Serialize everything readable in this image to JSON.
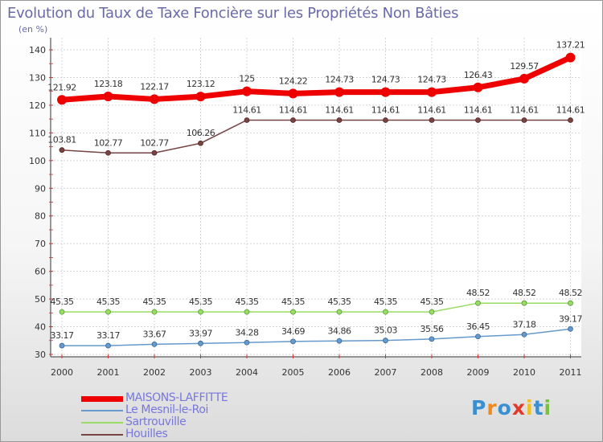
{
  "title": "Evolution du Taux de Taxe Foncière sur les Propriétés Non Bâties",
  "unit": "(en %)",
  "logo": {
    "text": "Proxiti",
    "letters": [
      {
        "ch": "P",
        "color": "#3a8fd0"
      },
      {
        "ch": "r",
        "color": "#f08a1c"
      },
      {
        "ch": "o",
        "color": "#3a8fd0"
      },
      {
        "ch": "x",
        "color": "#e23a2a"
      },
      {
        "ch": "i",
        "color": "#f0c020"
      },
      {
        "ch": "t",
        "color": "#3a8fd0"
      },
      {
        "ch": "i",
        "color": "#7ac043"
      }
    ]
  },
  "chart_data": {
    "type": "line",
    "title": "Evolution du Taux de Taxe Foncière sur les Propriétés Non Bâties",
    "ylabel": "(en %)",
    "xlabel": "",
    "ylim": [
      30,
      140
    ],
    "yticks": [
      "30",
      "40",
      "50",
      "60",
      "70",
      "80",
      "90",
      "100",
      "110",
      "120",
      "130",
      "140"
    ],
    "grid": true,
    "legend_position": "bottom-left",
    "categories": [
      "2000",
      "2001",
      "2002",
      "2003",
      "2004",
      "2005",
      "2006",
      "2007",
      "2008",
      "2009",
      "2010",
      "2011"
    ],
    "series": [
      {
        "name": "MAISONS-LAFFITTE",
        "color": "#ee0000",
        "values": [
          121.92,
          123.18,
          122.17,
          123.12,
          125,
          124.22,
          124.73,
          124.73,
          124.73,
          126.43,
          129.57,
          137.21
        ],
        "labels": [
          "121.92",
          "123.18",
          "122.17",
          "123.12",
          "125",
          "124.22",
          "124.73",
          "124.73",
          "124.73",
          "126.43",
          "129.57",
          "137.21"
        ]
      },
      {
        "name": "Le Mesnil-le-Roi",
        "color": "#6699cc",
        "values": [
          33.17,
          33.17,
          33.67,
          33.97,
          34.28,
          34.69,
          34.86,
          35.03,
          35.56,
          36.45,
          37.18,
          39.17
        ],
        "labels": [
          "33.17",
          "33.17",
          "33.67",
          "33.97",
          "34.28",
          "34.69",
          "34.86",
          "35.03",
          "35.56",
          "36.45",
          "37.18",
          "39.17"
        ]
      },
      {
        "name": "Sartrouville",
        "color": "#99dd66",
        "values": [
          45.35,
          45.35,
          45.35,
          45.35,
          45.35,
          45.35,
          45.35,
          45.35,
          45.35,
          48.52,
          48.52,
          48.52
        ],
        "labels": [
          "45.35",
          "45.35",
          "45.35",
          "45.35",
          "45.35",
          "45.35",
          "45.35",
          "45.35",
          "45.35",
          "48.52",
          "48.52",
          "48.52"
        ]
      },
      {
        "name": "Houilles",
        "color": "#774444",
        "values": [
          103.81,
          102.77,
          102.77,
          106.26,
          114.61,
          114.61,
          114.61,
          114.61,
          114.61,
          114.61,
          114.61,
          114.61
        ],
        "labels": [
          "103.81",
          "102.77",
          "102.77",
          "106.26",
          "114.61",
          "114.61",
          "114.61",
          "114.61",
          "114.61",
          "114.61",
          "114.61",
          "114.61"
        ]
      }
    ]
  }
}
